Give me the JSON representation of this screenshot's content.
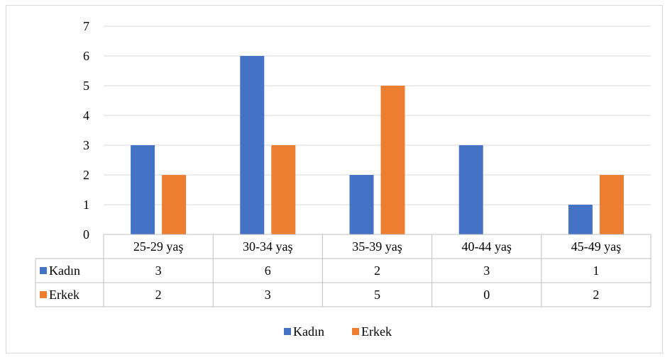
{
  "chart_data": {
    "type": "bar",
    "categories": [
      "25-29 yaş",
      "30-34 yaş",
      "35-39 yaş",
      "40-44 yaş",
      "45-49 yaş"
    ],
    "series": [
      {
        "name": "Kadın",
        "values": [
          3,
          6,
          2,
          3,
          1
        ],
        "color": "#4472c4"
      },
      {
        "name": "Erkek",
        "values": [
          2,
          3,
          5,
          0,
          2
        ],
        "color": "#ed7d31"
      }
    ],
    "ylim": [
      0,
      7
    ],
    "yticks": [
      0,
      1,
      2,
      3,
      4,
      5,
      6,
      7
    ],
    "grid": true,
    "data_table": true,
    "legend_position": "bottom",
    "gridline_color": "#d9d9d9",
    "table_border_color": "#bfbfbf"
  }
}
